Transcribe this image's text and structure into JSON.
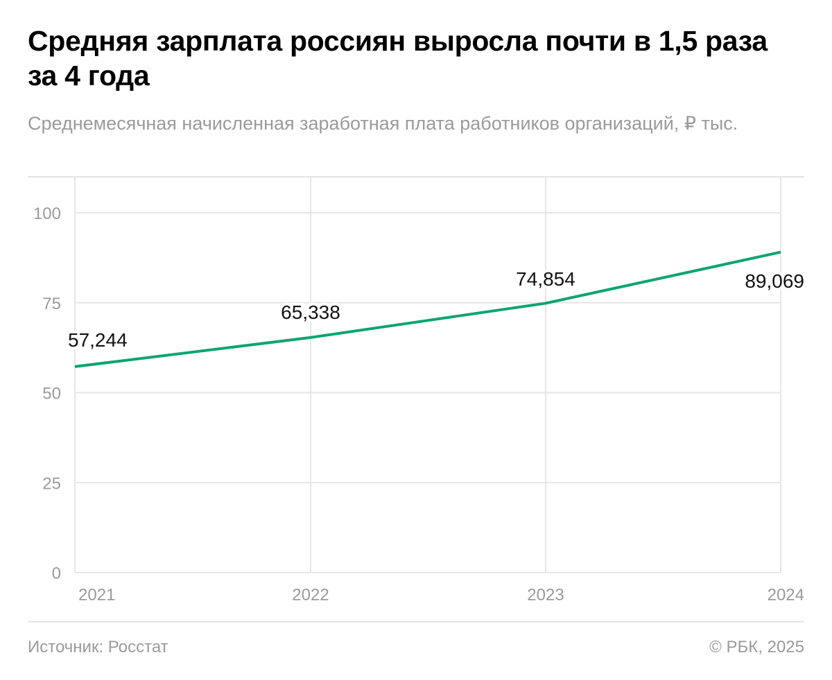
{
  "title": "Средняя зарплата россиян выросла почти в 1,5 раза за 4 года",
  "subtitle": "Среднемесячная начисленная заработная плата работников организаций, ₽ тыс.",
  "footer": {
    "source": "Источник: Росстат",
    "copyright": "© РБК, 2025"
  },
  "chart_data": {
    "type": "line",
    "title": "Средняя зарплата россиян выросла почти в 1,5 раза за 4 года",
    "ylabel": "₽ тыс.",
    "xlabel": "",
    "categories": [
      "2021",
      "2022",
      "2023",
      "2024"
    ],
    "series": [
      {
        "name": "Среднемесячная начисленная заработная плата",
        "values": [
          57.244,
          65.338,
          74.854,
          89.069
        ],
        "labels": [
          "57,244",
          "65,338",
          "74,854",
          "89,069"
        ],
        "color": "#0ba56f"
      }
    ],
    "ylim": [
      0,
      100
    ],
    "yticks": [
      0,
      25,
      50,
      75,
      100
    ],
    "grid": true,
    "legend": "none"
  }
}
